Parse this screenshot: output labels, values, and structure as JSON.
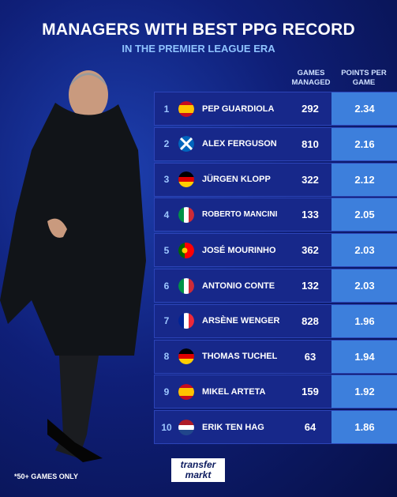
{
  "header": {
    "title": "MANAGERS WITH BEST PPG RECORD",
    "subtitle": "IN THE PREMIER LEAGUE ERA"
  },
  "table": {
    "columns": [
      "GAMES MANAGED",
      "POINTS PER GAME"
    ],
    "rows": [
      [
        "1",
        "PEP GUARDIOLA",
        "292",
        "2.34"
      ],
      [
        "2",
        "ALEX FERGUSON",
        "810",
        "2.16"
      ],
      [
        "3",
        "JÜRGEN KLOPP",
        "322",
        "2.12"
      ],
      [
        "4",
        "ROBERTO MANCINI",
        "133",
        "2.05"
      ],
      [
        "5",
        "JOSÉ MOURINHO",
        "362",
        "2.03"
      ],
      [
        "6",
        "ANTONIO CONTE",
        "132",
        "2.03"
      ],
      [
        "7",
        "ARSÈNE WENGER",
        "828",
        "1.96"
      ],
      [
        "8",
        "THOMAS TUCHEL",
        "63",
        "1.94"
      ],
      [
        "9",
        "MIKEL ARTETA",
        "159",
        "1.92"
      ],
      [
        "10",
        "ERIK TEN HAG",
        "64",
        "1.86"
      ]
    ]
  },
  "footer": {
    "note": "*50+ GAMES ONLY",
    "logo_top": "transfer",
    "logo_bottom": "markt"
  }
}
